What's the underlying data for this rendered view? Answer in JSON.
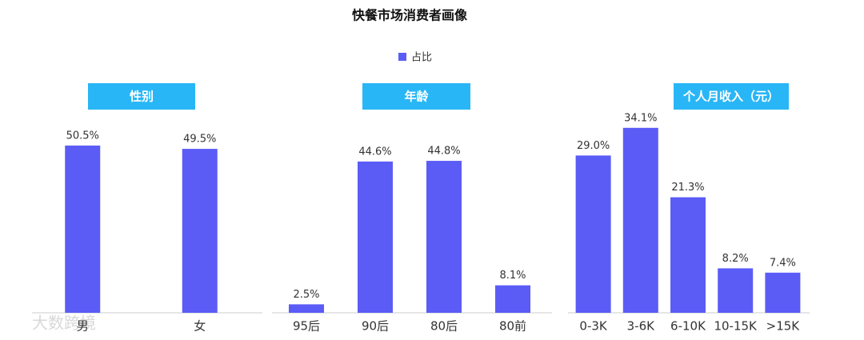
{
  "title": "快餐市场消费者画像",
  "legend": {
    "name": "占比",
    "color": "#5b5cf6"
  },
  "watermark": "大数跨境",
  "chart_data": [
    {
      "type": "bar",
      "title": "性别",
      "categories": [
        "男",
        "女"
      ],
      "values": [
        50.5,
        49.5
      ],
      "value_labels": [
        "50.5%",
        "49.5%"
      ],
      "color": "#5b5cf6"
    },
    {
      "type": "bar",
      "title": "年龄",
      "categories": [
        "95后",
        "90后",
        "80后",
        "80前"
      ],
      "values": [
        2.5,
        44.6,
        44.8,
        8.1
      ],
      "value_labels": [
        "2.5%",
        "44.6%",
        "44.8%",
        "8.1%"
      ],
      "color": "#5b5cf6"
    },
    {
      "type": "bar",
      "title": "个人月收入（元）",
      "categories": [
        "0-3K",
        "3-6K",
        "6-10K",
        "10-15K",
        ">15K"
      ],
      "values": [
        29.0,
        34.1,
        21.3,
        8.2,
        7.4
      ],
      "value_labels": [
        "29.0%",
        "34.1%",
        "21.3%",
        "8.2%",
        "7.4%"
      ],
      "color": "#5b5cf6"
    }
  ]
}
